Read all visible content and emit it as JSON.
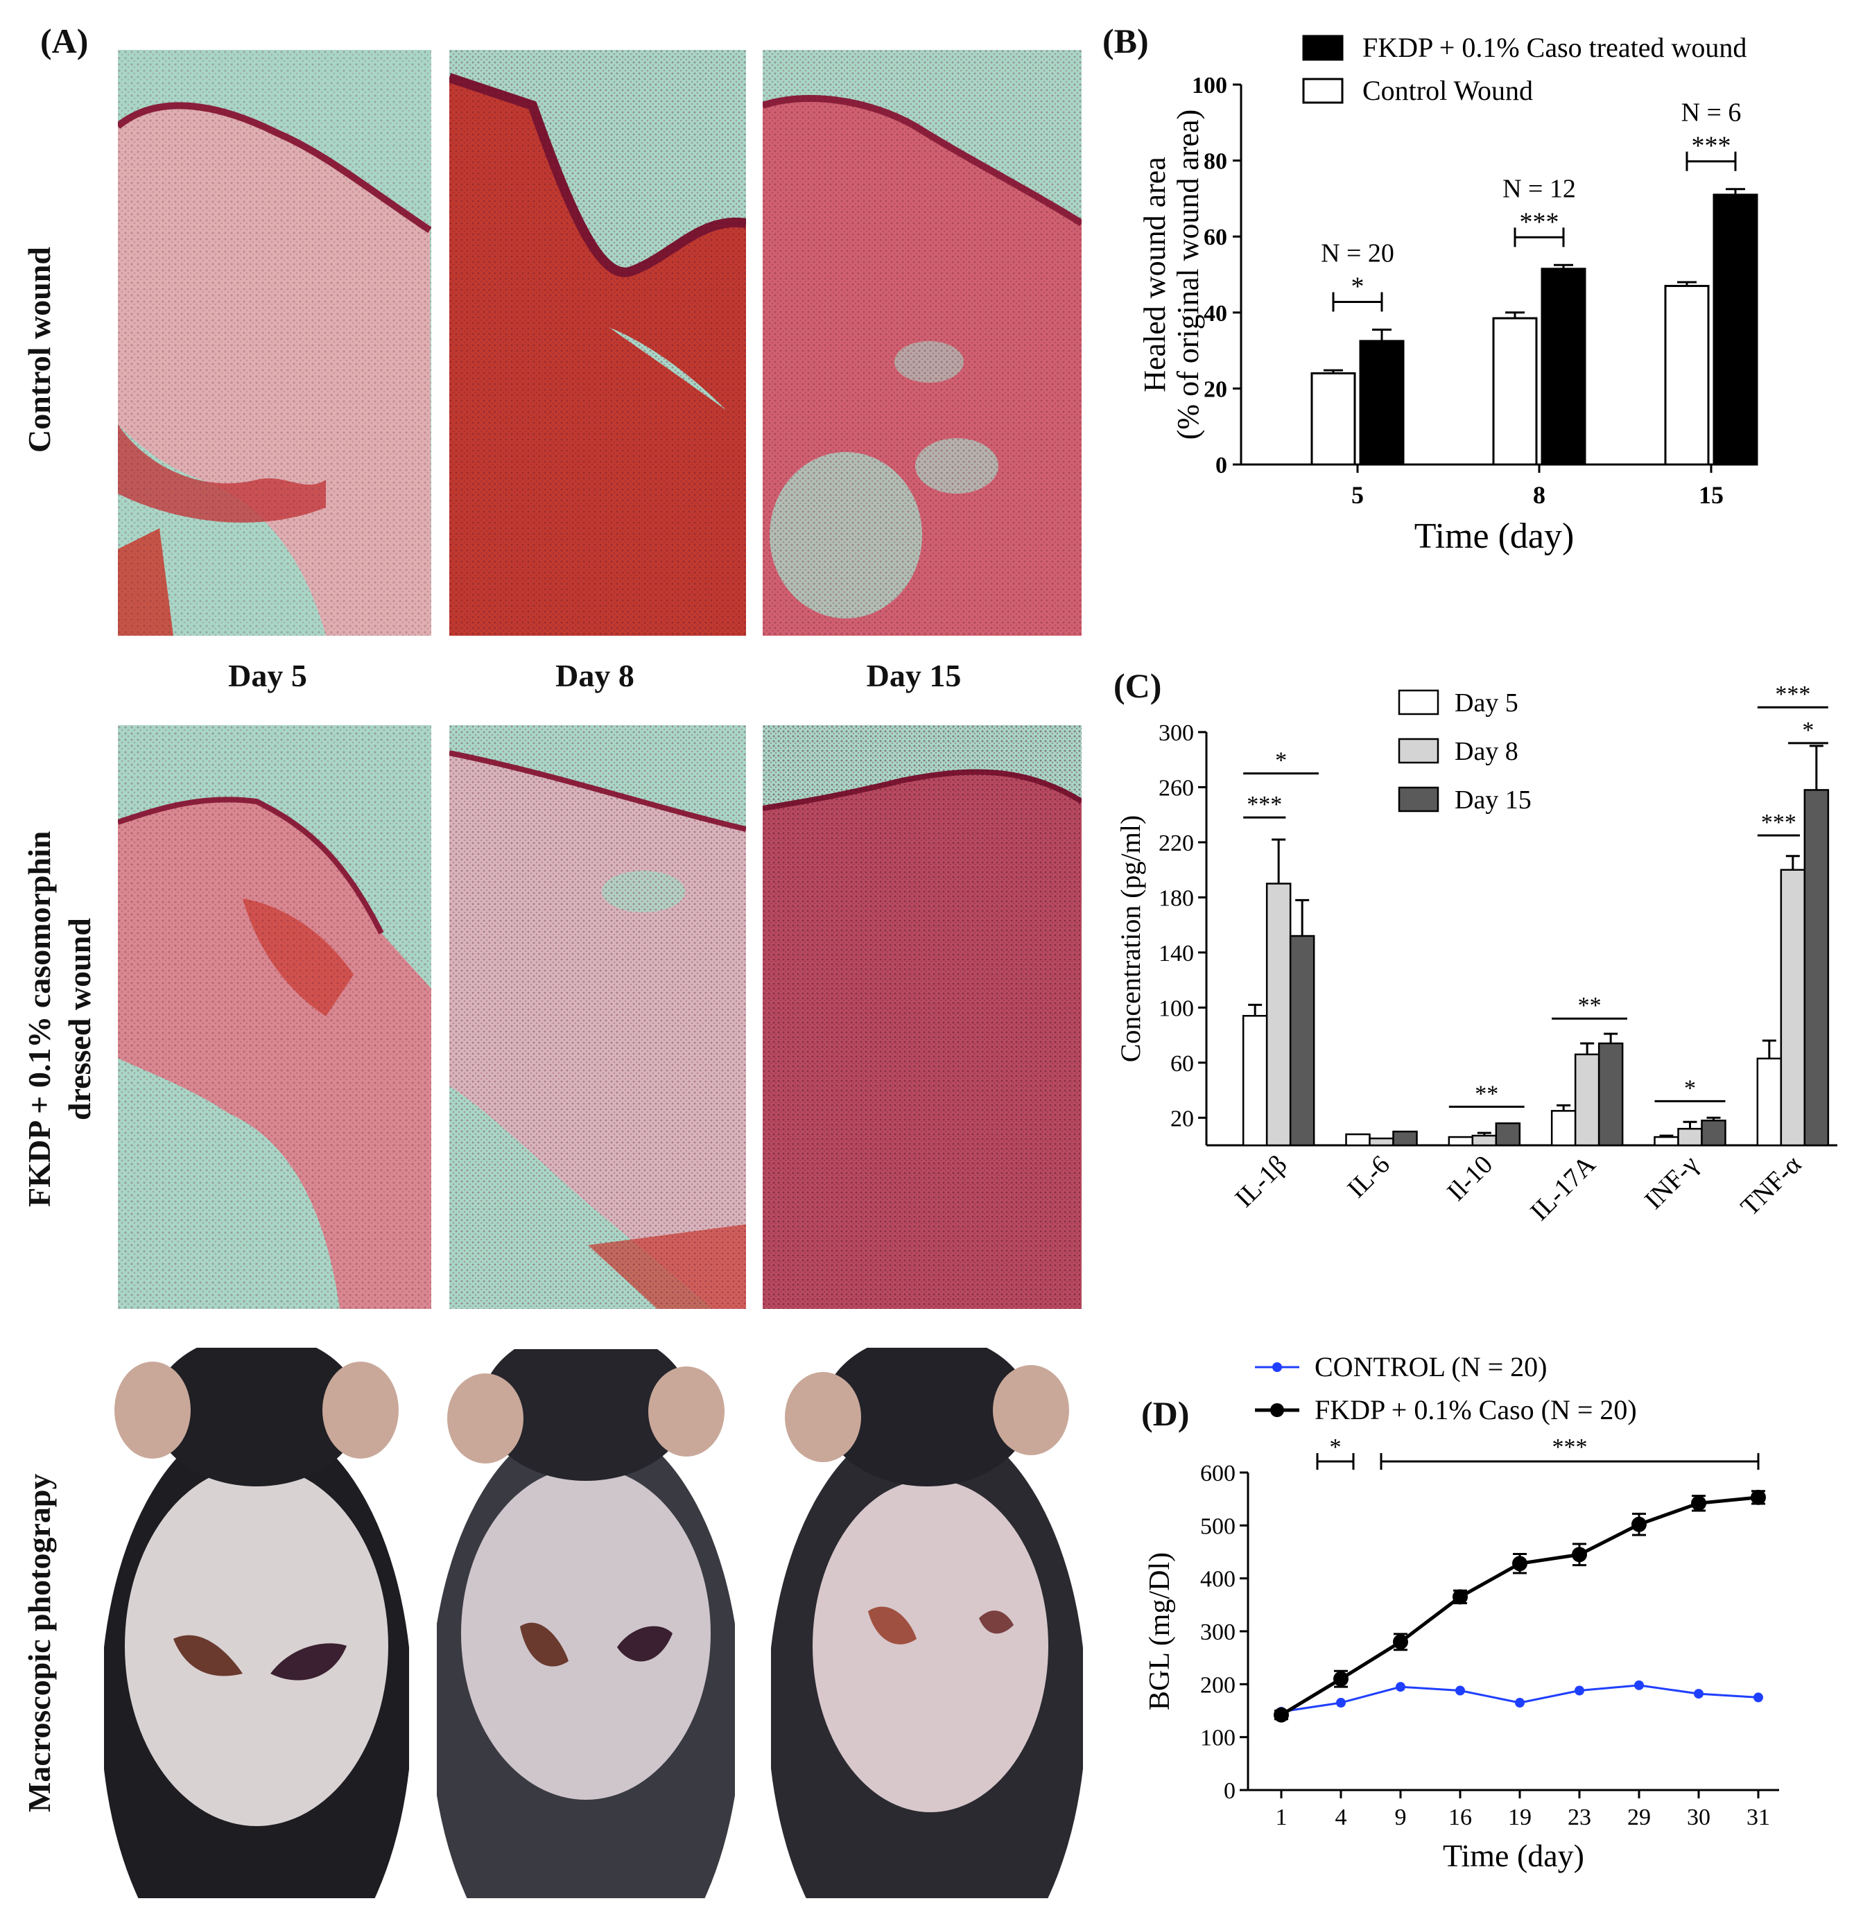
{
  "panel_a": {
    "letter": "(A)",
    "row_labels": {
      "control": "Control wound",
      "treated_line1": "FKDP + 0.1% casomorphin",
      "treated_line2": "dressed wound",
      "macro": "Macroscopic  photograpy"
    },
    "day_labels": [
      "Day 5",
      "Day 8",
      "Day 15"
    ]
  },
  "colors": {
    "histo_bg": "#a9d6c6",
    "tissue": "#c23a4a",
    "muscle": "#cc3326",
    "mouse_fur": "#1d1d22",
    "skin": "#d9d2d2",
    "wound": "#6a3a2e",
    "control_line": "#1f3fff",
    "treated_line": "#000000"
  },
  "chart_data": [
    {
      "id": "B",
      "letter": "(B)",
      "type": "bar",
      "categories": [
        "5",
        "8",
        "15"
      ],
      "series": [
        {
          "name": "Control Wound",
          "fill": "#ffffff",
          "values": [
            24,
            38.5,
            47
          ],
          "errors": [
            0.8,
            1.5,
            1
          ]
        },
        {
          "name": "FKDP + 0.1% Caso treated wound",
          "fill": "#000000",
          "values": [
            32.5,
            51.5,
            71
          ],
          "errors": [
            3,
            1,
            1.5
          ]
        }
      ],
      "xlabel": "Time (day)",
      "ylabel_line1": "Healed wound area",
      "ylabel_line2": "(% of original wound area)",
      "ylim": [
        0,
        100
      ],
      "yticks": [
        0,
        20,
        40,
        60,
        80,
        100
      ],
      "n_labels": [
        "N = 20",
        "N = 12",
        "N = 6"
      ],
      "significance": [
        "*",
        "***",
        "***"
      ],
      "legend_position": "top"
    },
    {
      "id": "C",
      "letter": "(C)",
      "type": "bar",
      "categories": [
        "IL-1β",
        "IL-6",
        "Il-10",
        "IL-17A",
        "INF-γ",
        "TNF-α"
      ],
      "series": [
        {
          "name": "Day 5",
          "fill": "#ffffff",
          "values": [
            94,
            8,
            6,
            25,
            6,
            63
          ],
          "errors": [
            8,
            0,
            0,
            4,
            1,
            13
          ]
        },
        {
          "name": "Day 8",
          "fill": "#d4d4d4",
          "values": [
            190,
            5,
            7,
            66,
            12,
            200
          ],
          "errors": [
            32,
            0,
            2,
            8,
            5,
            10
          ]
        },
        {
          "name": "Day 15",
          "fill": "#5a5a5a",
          "values": [
            152,
            10,
            16,
            74,
            18,
            258
          ],
          "errors": [
            26,
            0,
            0,
            7,
            2,
            32
          ]
        }
      ],
      "ylabel": "Concentration (pg/ml)",
      "ylim": [
        0,
        300
      ],
      "yticks": [
        20,
        60,
        100,
        140,
        180,
        220,
        260,
        300
      ],
      "significance": [
        {
          "category": "IL-1β",
          "label": "*"
        },
        {
          "category": "IL-1β",
          "label": "***"
        },
        {
          "category": "Il-10",
          "label": "**"
        },
        {
          "category": "IL-17A",
          "label": "**"
        },
        {
          "category": "INF-γ",
          "label": "*"
        },
        {
          "category": "TNF-α",
          "label": "***"
        },
        {
          "category": "TNF-α",
          "label": "*"
        },
        {
          "category": "TNF-α",
          "label": "***"
        }
      ],
      "legend_position": "top"
    },
    {
      "id": "D",
      "letter": "(D)",
      "type": "line",
      "x": [
        "1",
        "4",
        "9",
        "16",
        "19",
        "23",
        "29",
        "30",
        "31"
      ],
      "series": [
        {
          "name": "CONTROL (N = 20)",
          "color": "#1f3fff",
          "values": [
            148,
            165,
            195,
            188,
            165,
            188,
            198,
            182,
            175
          ],
          "errors": [
            0,
            0,
            0,
            0,
            0,
            0,
            0,
            0,
            0
          ]
        },
        {
          "name": "FKDP + 0.1% Caso (N = 20)",
          "color": "#000000",
          "values": [
            142,
            210,
            280,
            365,
            428,
            445,
            502,
            542,
            553
          ],
          "errors": [
            8,
            15,
            15,
            12,
            18,
            20,
            20,
            14,
            12
          ]
        }
      ],
      "xlabel": "Time (day)",
      "ylabel": "BGL (mg/Dl)",
      "ylim": [
        0,
        600
      ],
      "yticks": [
        0,
        100,
        200,
        300,
        400,
        500,
        600
      ],
      "significance": [
        {
          "label": "*",
          "from": "1",
          "to": "4"
        },
        {
          "label": "***",
          "from": "4",
          "to": "31"
        }
      ],
      "legend_position": "top"
    }
  ]
}
